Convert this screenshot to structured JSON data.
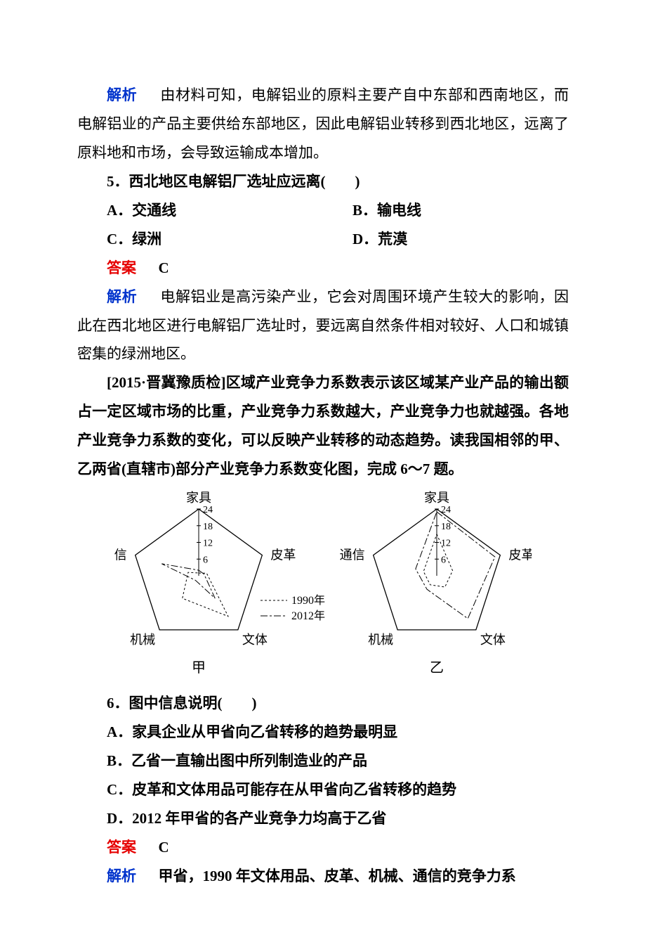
{
  "labels": {
    "analysis": "解析",
    "answer": "答案"
  },
  "analysis_top": "由材料可知，电解铝业的原料主要产自中东部和西南地区，而电解铝业的产品主要供给东部地区，因此电解铝业转移到西北地区，远离了原料地和市场，会导致运输成本增加。",
  "q5": {
    "number": "5．",
    "stem": "西北地区电解铝厂选址应远离(　　)",
    "options": {
      "A": "A．交通线",
      "B": "B．输电线",
      "C": "C．绿洲",
      "D": "D．荒漠"
    },
    "answer": "C",
    "analysis": "电解铝业是高污染产业，它会对周围环境产生较大的影响，因此在西北地区进行电解铝厂选址时，要远离自然条件相对较好、人口和城镇密集的绿洲地区。"
  },
  "passage_6_7": {
    "source": "[2015·晋冀豫质检]",
    "text": "区域产业竞争力系数表示该区域某产业产品的输出额占一定区域市场的比重，产业竞争力系数越大，产业竞争力也就越强。各地产业竞争力系数的变化，可以反映产业转移的动态趋势。读我国相邻的甲、乙两省(直辖市)部分产业竞争力系数变化图，完成 6～7 题。"
  },
  "chart": {
    "type": "radar-pair",
    "vertices": [
      "家具",
      "皮革",
      "文体",
      "机械",
      "通信"
    ],
    "axis_ticks": [
      6,
      12,
      18,
      24
    ],
    "axis_max": 24,
    "outline_color": "#000000",
    "series_styles": {
      "y1990": {
        "dash": "3,3",
        "width": 1,
        "color": "#000000"
      },
      "y2012": {
        "dash": "10,3,3,3",
        "width": 1,
        "color": "#000000"
      }
    },
    "legend": {
      "y1990": "1990年",
      "y2012": "2012年"
    },
    "panels": {
      "甲": {
        "y1990": {
          "家具": 1,
          "皮革": 3,
          "文体": 18,
          "机械": 10,
          "通信": 4
        },
        "y2012": {
          "家具": 2,
          "皮革": 2,
          "文体": 10,
          "机械": 2,
          "通信": 14
        }
      },
      "乙": {
        "y1990": {
          "家具": 15,
          "皮革": 6,
          "文体": 5,
          "机械": 4,
          "通信": 5
        },
        "y2012": {
          "家具": 23,
          "皮革": 22,
          "文体": 19,
          "机械": 6,
          "通信": 8
        }
      }
    },
    "panel_order": [
      "甲",
      "乙"
    ]
  },
  "q6": {
    "number": "6．",
    "stem": "图中信息说明(　　)",
    "options": {
      "A": "A．家具企业从甲省向乙省转移的趋势最明显",
      "B": "B．乙省一直输出图中所列制造业的产品",
      "C": "C．皮革和文体用品可能存在从甲省向乙省转移的趋势",
      "D": "D．2012 年甲省的各产业竞争力均高于乙省"
    },
    "answer": "C",
    "analysis_lead": "甲省，1990 年文体用品、皮革、机械、通信的竞争力系"
  }
}
